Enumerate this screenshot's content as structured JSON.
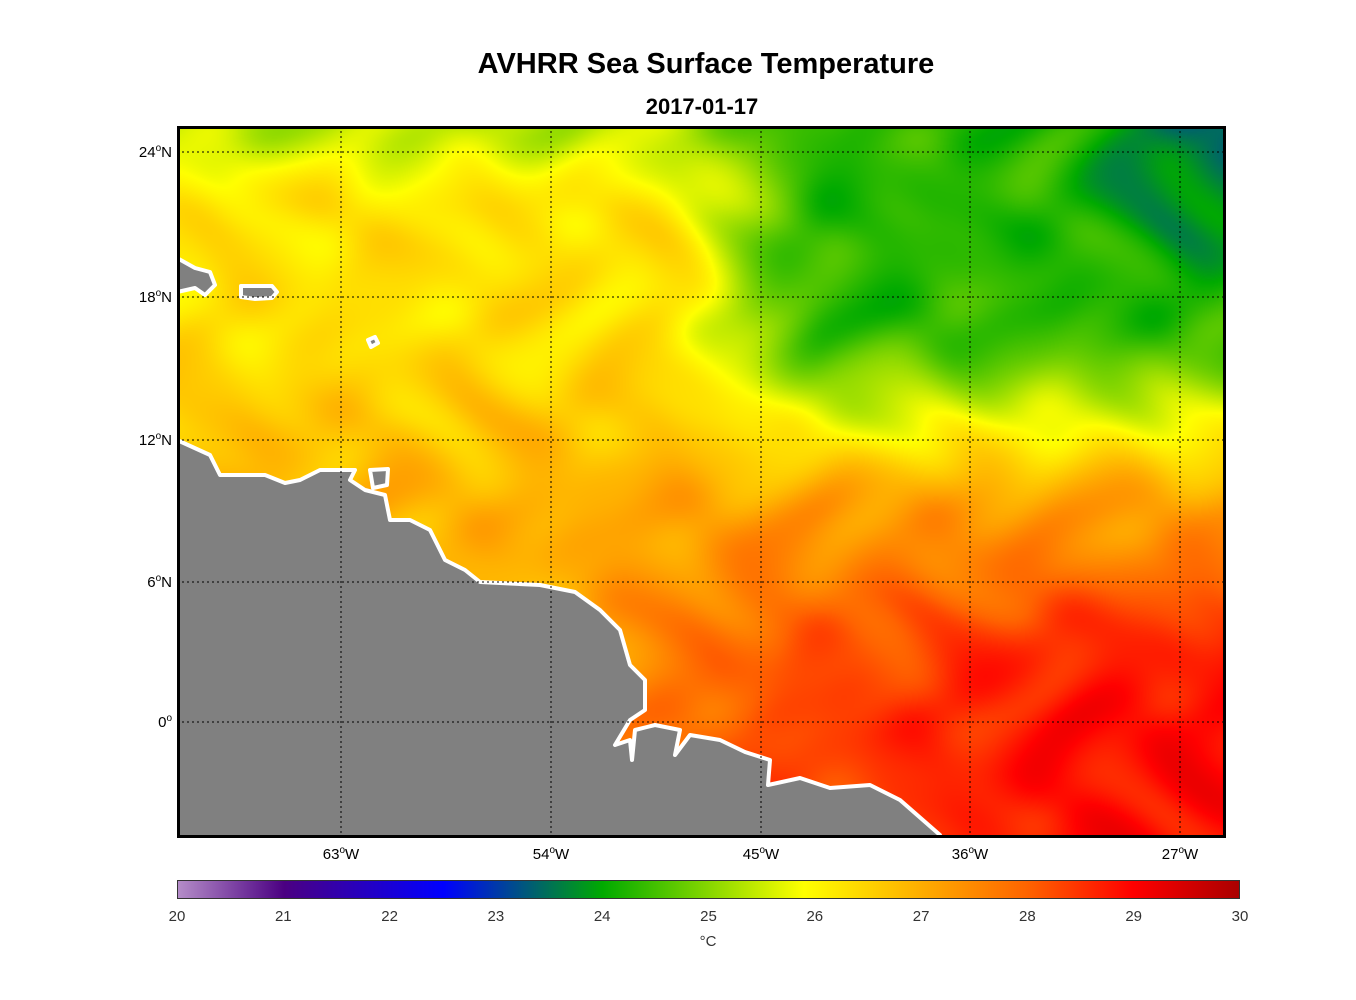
{
  "title": "AVHRR Sea Surface Temperature",
  "subtitle": "2017-01-17",
  "lat_labels": [
    {
      "deg": "24",
      "hemi": "N"
    },
    {
      "deg": "18",
      "hemi": "N"
    },
    {
      "deg": "12",
      "hemi": "N"
    },
    {
      "deg": "6",
      "hemi": "N"
    },
    {
      "deg": "0",
      "hemi": ""
    }
  ],
  "lon_labels": [
    {
      "deg": "63",
      "hemi": "W"
    },
    {
      "deg": "54",
      "hemi": "W"
    },
    {
      "deg": "45",
      "hemi": "W"
    },
    {
      "deg": "36",
      "hemi": "W"
    },
    {
      "deg": "27",
      "hemi": "W"
    }
  ],
  "colorbar": {
    "ticks": [
      "20",
      "21",
      "22",
      "23",
      "24",
      "25",
      "26",
      "27",
      "28",
      "29",
      "30"
    ],
    "unit": "°C",
    "range": [
      20,
      30
    ],
    "stops": [
      {
        "v": 20,
        "c": "#b48cc8"
      },
      {
        "v": 21,
        "c": "#4b0082"
      },
      {
        "v": 22.5,
        "c": "#0000ff"
      },
      {
        "v": 24,
        "c": "#00aa00"
      },
      {
        "v": 25.9,
        "c": "#ffff00"
      },
      {
        "v": 28,
        "c": "#ff6400"
      },
      {
        "v": 29,
        "c": "#ff0000"
      },
      {
        "v": 30,
        "c": "#aa0000"
      }
    ]
  },
  "colors": {
    "land": "#808080",
    "coast": "#ffffff"
  }
}
